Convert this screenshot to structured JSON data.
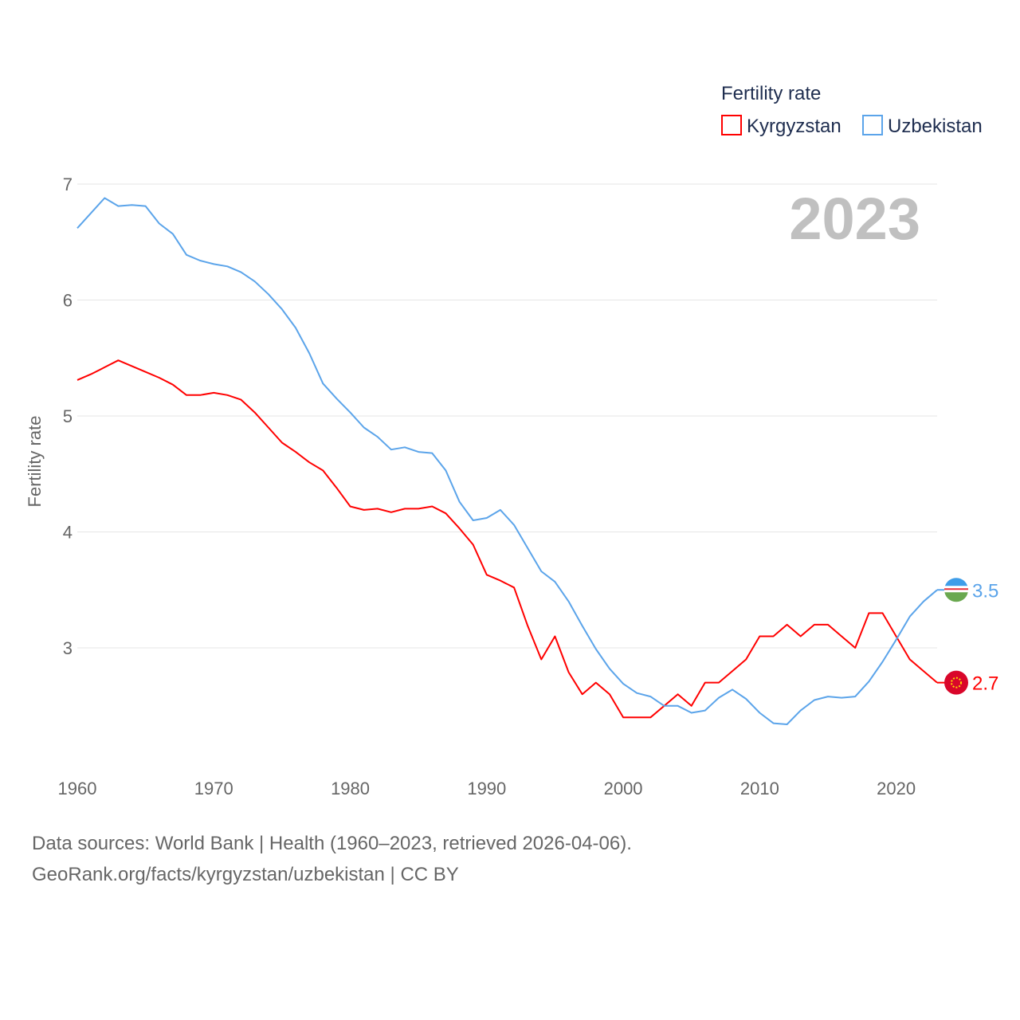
{
  "chart_data": {
    "type": "line",
    "title": "Fertility rate",
    "ylabel": "Fertility rate",
    "xlabel": "",
    "year_label": "2023",
    "xlim": [
      1960,
      2023
    ],
    "ylim": [
      2,
      7
    ],
    "x_ticks": [
      1960,
      1970,
      1980,
      1990,
      2000,
      2010,
      2020
    ],
    "y_ticks": [
      3,
      4,
      5,
      6,
      7
    ],
    "grid": true,
    "legend_position": "top-right",
    "x": [
      1960,
      1961,
      1962,
      1963,
      1964,
      1965,
      1966,
      1967,
      1968,
      1969,
      1970,
      1971,
      1972,
      1973,
      1974,
      1975,
      1976,
      1977,
      1978,
      1979,
      1980,
      1981,
      1982,
      1983,
      1984,
      1985,
      1986,
      1987,
      1988,
      1989,
      1990,
      1991,
      1992,
      1993,
      1994,
      1995,
      1996,
      1997,
      1998,
      1999,
      2000,
      2001,
      2002,
      2003,
      2004,
      2005,
      2006,
      2007,
      2008,
      2009,
      2010,
      2011,
      2012,
      2013,
      2014,
      2015,
      2016,
      2017,
      2018,
      2019,
      2020,
      2021,
      2022,
      2023
    ],
    "series": [
      {
        "name": "Kyrgyzstan",
        "color": "#ff0000",
        "end_label": "2.7",
        "flag_color": "#d9062a",
        "values": [
          5.31,
          5.36,
          5.42,
          5.48,
          5.43,
          5.38,
          5.33,
          5.27,
          5.18,
          5.18,
          5.2,
          5.18,
          5.14,
          5.03,
          4.9,
          4.77,
          4.69,
          4.6,
          4.53,
          4.38,
          4.22,
          4.19,
          4.2,
          4.17,
          4.2,
          4.2,
          4.22,
          4.16,
          4.03,
          3.89,
          3.63,
          3.58,
          3.52,
          3.19,
          2.9,
          3.1,
          2.79,
          2.6,
          2.7,
          2.6,
          2.4,
          2.4,
          2.4,
          2.5,
          2.6,
          2.5,
          2.7,
          2.7,
          2.8,
          2.9,
          3.1,
          3.1,
          3.2,
          3.1,
          3.2,
          3.2,
          3.1,
          3.0,
          3.3,
          3.3,
          3.1,
          2.9,
          2.8,
          2.7
        ]
      },
      {
        "name": "Uzbekistan",
        "color": "#5ba4ea",
        "end_label": "3.5",
        "values": [
          6.62,
          6.75,
          6.88,
          6.81,
          6.82,
          6.81,
          6.66,
          6.57,
          6.39,
          6.34,
          6.31,
          6.29,
          6.24,
          6.16,
          6.05,
          5.92,
          5.76,
          5.54,
          5.28,
          5.15,
          5.03,
          4.9,
          4.82,
          4.71,
          4.73,
          4.69,
          4.68,
          4.53,
          4.26,
          4.1,
          4.12,
          4.19,
          4.06,
          3.86,
          3.66,
          3.57,
          3.4,
          3.19,
          2.99,
          2.82,
          2.69,
          2.61,
          2.58,
          2.5,
          2.5,
          2.44,
          2.46,
          2.57,
          2.64,
          2.56,
          2.44,
          2.35,
          2.34,
          2.46,
          2.55,
          2.58,
          2.57,
          2.58,
          2.71,
          2.88,
          3.07,
          3.27,
          3.4,
          3.5
        ]
      }
    ]
  },
  "footer": {
    "line1": "Data sources: World Bank | Health (1960–2023, retrieved 2026-04-06).",
    "line2": "GeoRank.org/facts/kyrgyzstan/uzbekistan | CC BY"
  }
}
